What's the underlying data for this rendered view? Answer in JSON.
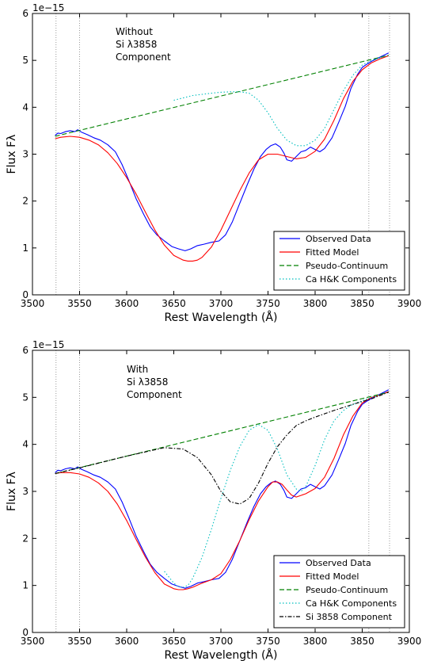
{
  "chart_data": [
    {
      "type": "line",
      "annotation": [
        "Without",
        "Si λ3858",
        "Component"
      ],
      "exponent_label": "1e−15",
      "xlabel": "Rest Wavelength (Å)",
      "ylabel": "Flux Fλ",
      "xlim": [
        3500,
        3900
      ],
      "ylim": [
        0,
        6
      ],
      "xticks": [
        "3500",
        "3550",
        "3600",
        "3650",
        "3700",
        "3750",
        "3800",
        "3850",
        "3900"
      ],
      "yticks": [
        "0",
        "1",
        "2",
        "3",
        "4",
        "5",
        "6"
      ],
      "vlines": [
        3525,
        3550,
        3857,
        3879
      ],
      "legend_position": "lower-right",
      "series": [
        {
          "name": "Observed Data",
          "color": "#0000ff",
          "style": "solid",
          "x": [
            3524,
            3527,
            3530,
            3535,
            3540,
            3545,
            3548,
            3552,
            3558,
            3565,
            3572,
            3580,
            3588,
            3595,
            3602,
            3610,
            3618,
            3625,
            3632,
            3640,
            3648,
            3655,
            3662,
            3668,
            3675,
            3682,
            3690,
            3698,
            3705,
            3712,
            3720,
            3728,
            3735,
            3742,
            3748,
            3753,
            3758,
            3763,
            3767,
            3770,
            3775,
            3780,
            3785,
            3790,
            3795,
            3800,
            3805,
            3810,
            3818,
            3825,
            3832,
            3838,
            3845,
            3850,
            3855,
            3860,
            3865,
            3870,
            3875,
            3878
          ],
          "y": [
            3.4,
            3.45,
            3.44,
            3.48,
            3.5,
            3.48,
            3.52,
            3.47,
            3.42,
            3.35,
            3.3,
            3.2,
            3.05,
            2.78,
            2.45,
            2.05,
            1.72,
            1.45,
            1.28,
            1.15,
            1.03,
            0.98,
            0.94,
            0.98,
            1.05,
            1.08,
            1.12,
            1.15,
            1.28,
            1.55,
            1.95,
            2.35,
            2.68,
            2.95,
            3.1,
            3.18,
            3.22,
            3.15,
            3.02,
            2.88,
            2.85,
            2.95,
            3.05,
            3.08,
            3.15,
            3.1,
            3.05,
            3.12,
            3.35,
            3.68,
            4.02,
            4.4,
            4.7,
            4.85,
            4.92,
            4.98,
            5.03,
            5.08,
            5.13,
            5.16
          ]
        },
        {
          "name": "Fitted Model",
          "color": "#ff0000",
          "style": "solid",
          "x": [
            3524,
            3530,
            3540,
            3550,
            3560,
            3570,
            3580,
            3590,
            3600,
            3610,
            3620,
            3630,
            3640,
            3650,
            3660,
            3665,
            3670,
            3675,
            3680,
            3690,
            3700,
            3710,
            3720,
            3730,
            3740,
            3750,
            3760,
            3770,
            3780,
            3790,
            3800,
            3810,
            3820,
            3830,
            3840,
            3850,
            3860,
            3870,
            3878
          ],
          "y": [
            3.33,
            3.36,
            3.38,
            3.36,
            3.3,
            3.2,
            3.03,
            2.8,
            2.5,
            2.15,
            1.76,
            1.38,
            1.06,
            0.84,
            0.74,
            0.72,
            0.72,
            0.74,
            0.8,
            1.02,
            1.38,
            1.8,
            2.22,
            2.6,
            2.88,
            3.0,
            3.0,
            2.95,
            2.9,
            2.93,
            3.06,
            3.32,
            3.72,
            4.18,
            4.55,
            4.8,
            4.95,
            5.04,
            5.1
          ]
        },
        {
          "name": "Pseudo-Continuum",
          "color": "#008000",
          "style": "dashed",
          "x": [
            3524,
            3878
          ],
          "y": [
            3.38,
            5.11
          ]
        },
        {
          "name": "Ca H&K Components",
          "color": "#00bfbf",
          "style": "dotted",
          "x": [
            3650,
            3670,
            3690,
            3700,
            3710,
            3720,
            3730,
            3740,
            3750,
            3760,
            3770,
            3780,
            3790,
            3800,
            3810,
            3820,
            3830,
            3840,
            3850,
            3860,
            3870,
            3878
          ],
          "y": [
            4.15,
            4.25,
            4.3,
            4.32,
            4.33,
            4.33,
            4.3,
            4.15,
            3.88,
            3.55,
            3.3,
            3.18,
            3.18,
            3.3,
            3.55,
            3.95,
            4.35,
            4.68,
            4.9,
            5.0,
            5.06,
            5.11
          ]
        }
      ]
    },
    {
      "type": "line",
      "annotation": [
        "With",
        "Si λ3858",
        "Component"
      ],
      "exponent_label": "1e−15",
      "xlabel": "Rest Wavelength (Å)",
      "ylabel": "Flux Fλ",
      "xlim": [
        3500,
        3900
      ],
      "ylim": [
        0,
        6
      ],
      "xticks": [
        "3500",
        "3550",
        "3600",
        "3650",
        "3700",
        "3750",
        "3800",
        "3850",
        "3900"
      ],
      "yticks": [
        "0",
        "1",
        "2",
        "3",
        "4",
        "5",
        "6"
      ],
      "vlines": [
        3525,
        3550,
        3857,
        3879
      ],
      "legend_position": "lower-right",
      "series": [
        {
          "name": "Observed Data",
          "color": "#0000ff",
          "style": "solid",
          "x": [
            3524,
            3527,
            3530,
            3535,
            3540,
            3545,
            3548,
            3552,
            3558,
            3565,
            3572,
            3580,
            3588,
            3595,
            3602,
            3610,
            3618,
            3625,
            3632,
            3640,
            3648,
            3655,
            3662,
            3668,
            3675,
            3682,
            3690,
            3698,
            3705,
            3712,
            3720,
            3728,
            3735,
            3742,
            3748,
            3753,
            3758,
            3763,
            3767,
            3770,
            3775,
            3780,
            3785,
            3790,
            3795,
            3800,
            3805,
            3810,
            3818,
            3825,
            3832,
            3838,
            3845,
            3850,
            3855,
            3860,
            3865,
            3870,
            3875,
            3878
          ],
          "y": [
            3.4,
            3.45,
            3.44,
            3.48,
            3.5,
            3.48,
            3.52,
            3.47,
            3.42,
            3.35,
            3.3,
            3.2,
            3.05,
            2.78,
            2.45,
            2.05,
            1.72,
            1.45,
            1.28,
            1.15,
            1.03,
            0.98,
            0.94,
            0.98,
            1.05,
            1.08,
            1.12,
            1.15,
            1.28,
            1.55,
            1.95,
            2.35,
            2.68,
            2.95,
            3.1,
            3.18,
            3.22,
            3.15,
            3.02,
            2.88,
            2.85,
            2.95,
            3.05,
            3.08,
            3.15,
            3.1,
            3.05,
            3.12,
            3.35,
            3.68,
            4.02,
            4.4,
            4.7,
            4.85,
            4.92,
            4.98,
            5.03,
            5.08,
            5.13,
            5.16
          ]
        },
        {
          "name": "Fitted Model",
          "color": "#ff0000",
          "style": "solid",
          "x": [
            3524,
            3530,
            3540,
            3550,
            3560,
            3570,
            3580,
            3590,
            3600,
            3610,
            3620,
            3630,
            3640,
            3650,
            3655,
            3660,
            3665,
            3670,
            3680,
            3690,
            3700,
            3710,
            3720,
            3730,
            3740,
            3750,
            3755,
            3760,
            3765,
            3770,
            3775,
            3780,
            3790,
            3800,
            3810,
            3820,
            3830,
            3840,
            3850,
            3860,
            3870,
            3878
          ],
          "y": [
            3.38,
            3.4,
            3.4,
            3.37,
            3.3,
            3.18,
            3.0,
            2.73,
            2.38,
            1.98,
            1.6,
            1.27,
            1.03,
            0.93,
            0.91,
            0.91,
            0.93,
            0.96,
            1.05,
            1.12,
            1.25,
            1.55,
            1.95,
            2.4,
            2.8,
            3.1,
            3.2,
            3.2,
            3.15,
            3.03,
            2.92,
            2.88,
            2.95,
            3.06,
            3.3,
            3.7,
            4.2,
            4.6,
            4.88,
            5.0,
            5.06,
            5.12
          ]
        },
        {
          "name": "Pseudo-Continuum",
          "color": "#008000",
          "style": "dashed",
          "x": [
            3524,
            3878
          ],
          "y": [
            3.38,
            5.11
          ]
        },
        {
          "name": "Ca H&K Components",
          "color": "#00bfbf",
          "style": "dotted",
          "x": [
            3640,
            3650,
            3655,
            3660,
            3665,
            3670,
            3680,
            3690,
            3700,
            3710,
            3720,
            3730,
            3740,
            3750,
            3760,
            3770,
            3780,
            3785,
            3790,
            3800,
            3810,
            3820,
            3830,
            3840,
            3850,
            3860,
            3870,
            3878
          ],
          "y": [
            1.3,
            1.05,
            0.97,
            0.96,
            1.0,
            1.15,
            1.6,
            2.2,
            2.85,
            3.45,
            3.95,
            4.3,
            4.42,
            4.3,
            3.9,
            3.35,
            3.05,
            3.0,
            3.1,
            3.55,
            4.1,
            4.5,
            4.72,
            4.85,
            4.93,
            5.0,
            5.06,
            5.11
          ]
        },
        {
          "name": "Si 3858 Component",
          "color": "#000000",
          "style": "dashdot",
          "x": [
            3524,
            3550,
            3600,
            3640,
            3660,
            3675,
            3690,
            3700,
            3710,
            3720,
            3730,
            3740,
            3750,
            3760,
            3770,
            3780,
            3790,
            3800,
            3820,
            3840,
            3860,
            3878
          ],
          "y": [
            3.38,
            3.5,
            3.75,
            3.93,
            3.9,
            3.72,
            3.35,
            3.0,
            2.78,
            2.73,
            2.85,
            3.18,
            3.6,
            3.95,
            4.2,
            4.4,
            4.5,
            4.58,
            4.72,
            4.85,
            4.97,
            5.11
          ]
        }
      ]
    }
  ]
}
